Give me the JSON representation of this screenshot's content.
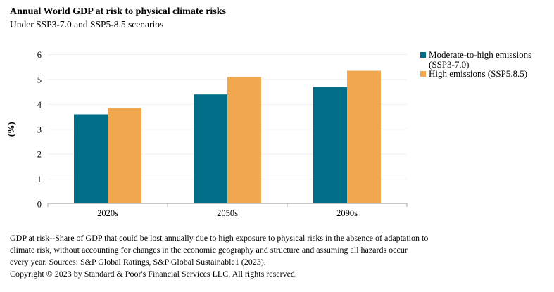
{
  "header": {
    "title": "Annual World GDP at risk to physical climate risks",
    "subtitle": "Under SSP3-7.0 and SSP5-8.5 scenarios"
  },
  "chart_data": {
    "type": "bar",
    "categories": [
      "2020s",
      "2050s",
      "2090s"
    ],
    "series": [
      {
        "name": "Moderate-to-high emissions (SSP3-7.0)",
        "color": "#006E87",
        "values": [
          3.6,
          4.4,
          4.7
        ]
      },
      {
        "name": "High emissions (SSP5.8.5)",
        "color": "#F0A74E",
        "values": [
          3.85,
          5.1,
          5.35
        ]
      }
    ],
    "title": "Annual World GDP at risk to physical climate risks",
    "subtitle": "Under SSP3-7.0 and SSP5-8.5 scenarios",
    "xlabel": "",
    "ylabel": "(%)",
    "ylim": [
      0,
      6
    ],
    "yticks": [
      0,
      1,
      2,
      3,
      4,
      5,
      6
    ],
    "grid": true,
    "legend_position": "right",
    "gridline_color": "#EFEFEF",
    "axis_line_color": "#C6C6C6",
    "tick_color": "#ADADAD"
  },
  "legend": {
    "items": [
      {
        "color": "#006E87",
        "lines": [
          "Moderate-to-high emissions",
          "(SSP3-7.0)"
        ]
      },
      {
        "color": "#F0A74E",
        "lines": [
          "High emissions (SSP5.8.5)"
        ]
      }
    ]
  },
  "footnote": {
    "lines": [
      "GDP at risk--Share of GDP that could be lost annually due to high exposure to physical risks in the absence of adaptation to",
      "climate risk, without accounting for changes in the economic geography and structure and assuming all hazards occur",
      "every year. Sources: S&P Global Ratings, S&P Global Sustainable1 (2023)."
    ],
    "copyright": "Copyright © 2023 by Standard & Poor's Financial Services LLC. All rights reserved."
  }
}
